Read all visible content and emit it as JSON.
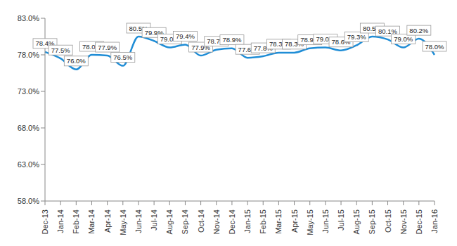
{
  "chart_data": {
    "type": "line",
    "categories": [
      "Dec-13",
      "Jan-14",
      "Feb-14",
      "Mar-14",
      "Apr-14",
      "May-14",
      "Jun-14",
      "Jul-14",
      "Aug-14",
      "Sep-14",
      "Oct-14",
      "Nov-14",
      "Dec-14",
      "Jan-15",
      "Feb-15",
      "Mar-15",
      "Apr-15",
      "May-15",
      "Jun-15",
      "Jul-15",
      "Aug-15",
      "Sep-15",
      "Oct-15",
      "Nov-15",
      "Dec-15",
      "Jan-16"
    ],
    "values": [
      78.4,
      77.5,
      76.0,
      78.0,
      77.9,
      76.5,
      80.5,
      79.9,
      79.0,
      79.4,
      77.9,
      78.7,
      78.9,
      77.6,
      77.8,
      78.3,
      78.3,
      78.9,
      79.0,
      78.6,
      79.3,
      80.5,
      80.1,
      79.0,
      80.2,
      78.0
    ],
    "value_labels": [
      "78.4%",
      "77.5%",
      "76.0%",
      "78.0%",
      "77.9%",
      "76.5%",
      "80.5%",
      "79.9%",
      "79.0%",
      "79.4%",
      "77.9%",
      "78.7%",
      "78.9%",
      "77.6%",
      "77.8%",
      "78.3%",
      "78.3%",
      "78.9%",
      "79.0%",
      "78.6%",
      "79.3%",
      "80.5%",
      "80.1%",
      "79.0%",
      "80.2%",
      "78.0%"
    ],
    "color": "#1f8dd6",
    "ylim": [
      58,
      83
    ],
    "yticks": [
      {
        "value": 58,
        "label": "58.0%"
      },
      {
        "value": 63,
        "label": "63.0%"
      },
      {
        "value": 68,
        "label": "68.0%"
      },
      {
        "value": 73,
        "label": "73.0%"
      },
      {
        "value": 78,
        "label": "78.0%"
      },
      {
        "value": 83,
        "label": "83.0%"
      }
    ],
    "grid": false,
    "data_labels": true,
    "line_style": "smooth"
  }
}
